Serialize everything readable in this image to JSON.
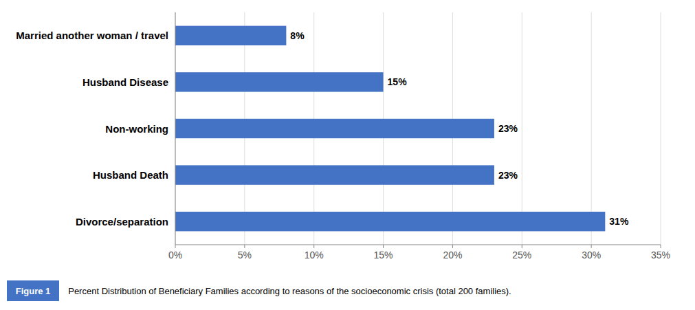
{
  "chart_data": {
    "type": "bar",
    "orientation": "horizontal",
    "categories": [
      "Divorce/separation",
      "Husband Death",
      "Non-working",
      "Husband Disease",
      "Married another woman / travel"
    ],
    "values": [
      31,
      23,
      23,
      15,
      8
    ],
    "value_labels": [
      "31%",
      "23%",
      "23%",
      "15%",
      "8%"
    ],
    "data_labels": true,
    "color": "#4472C4",
    "xlim": [
      0,
      35
    ],
    "xticks": [
      {
        "value": 0,
        "label": "0%"
      },
      {
        "value": 5,
        "label": "5%"
      },
      {
        "value": 10,
        "label": "10%"
      },
      {
        "value": 15,
        "label": "15%"
      },
      {
        "value": 20,
        "label": "20%"
      },
      {
        "value": 25,
        "label": "25%"
      },
      {
        "value": 30,
        "label": "30%"
      },
      {
        "value": 35,
        "label": "35%"
      }
    ],
    "grid": true,
    "annotations": [
      "Figure 1",
      "  Percent Distribution of Beneficiary Families according to reasons of the socioeconomic crisis (total 200 families)."
    ]
  }
}
